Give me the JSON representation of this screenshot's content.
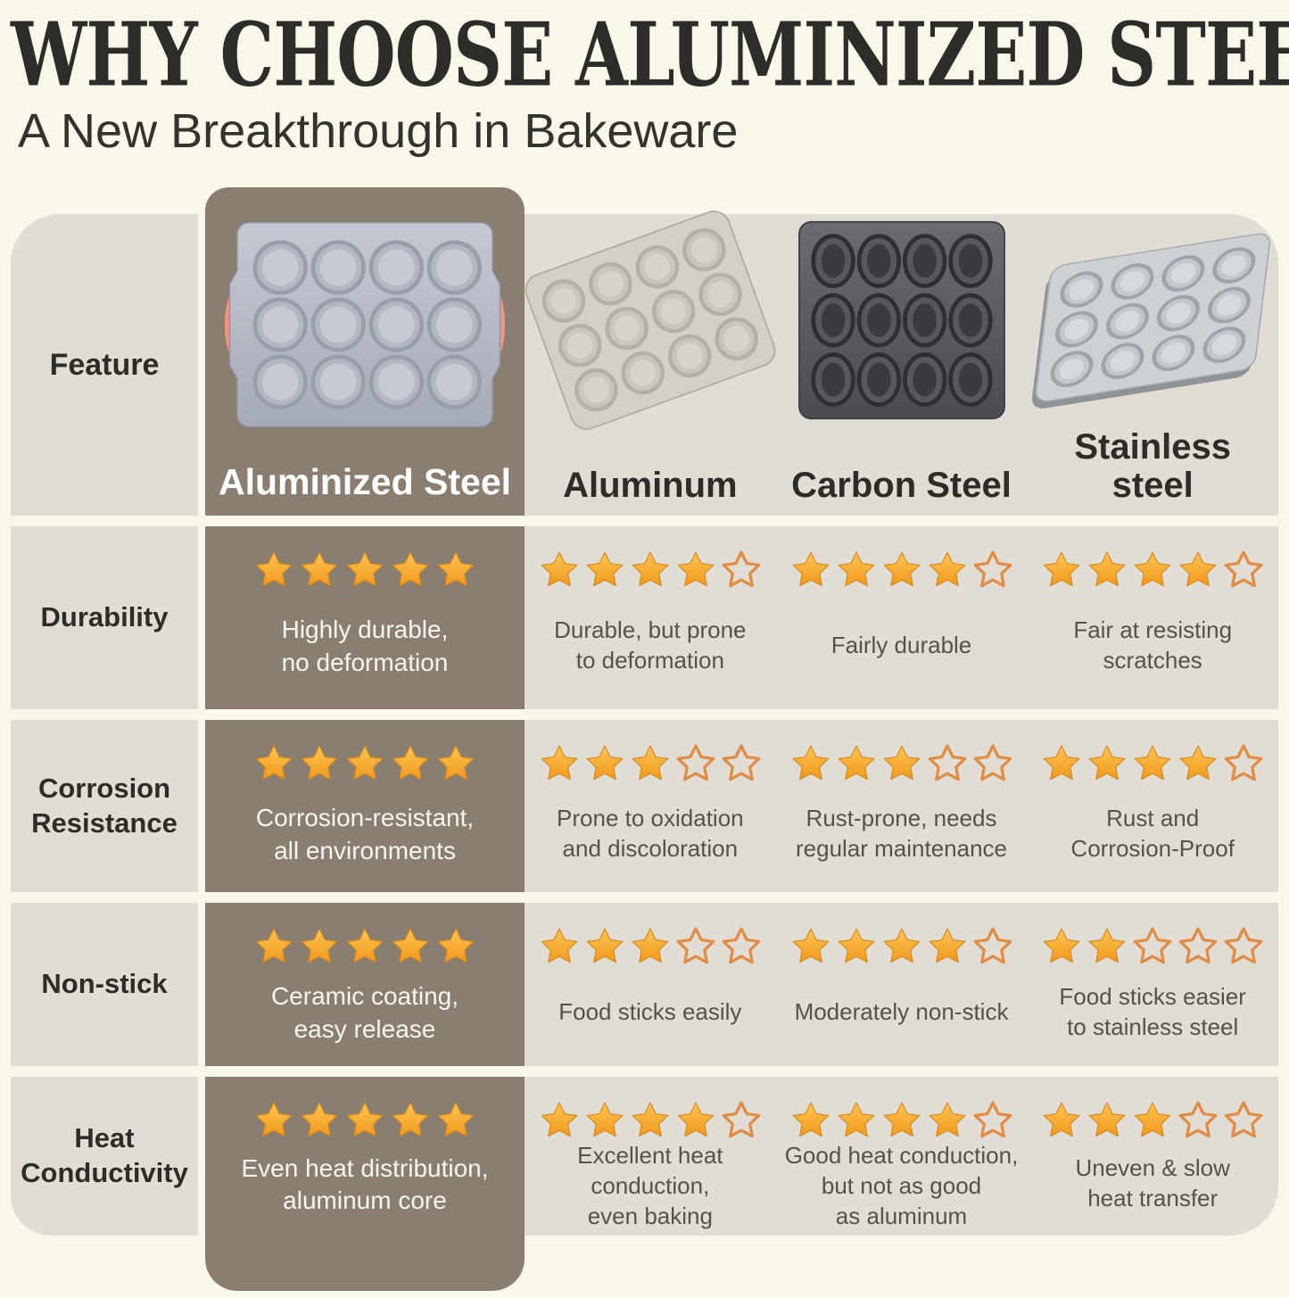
{
  "title": "WHY CHOOSE ALUMINIZED STEEL?",
  "subtitle": "A New Breakthrough in Bakeware",
  "table": {
    "feature_header": "Feature",
    "max_stars": 5,
    "columns": [
      "Aluminized Steel",
      "Aluminum",
      "Carbon Steel",
      "Stainless\nsteel"
    ],
    "rows": [
      {
        "feature": "Durability",
        "cells": [
          {
            "stars": 5,
            "text": "Highly durable,\nno deformation"
          },
          {
            "stars": 4,
            "text": "Durable, but prone\nto deformation"
          },
          {
            "stars": 4,
            "text": "Fairly durable"
          },
          {
            "stars": 4,
            "text": "Fair at resisting\nscratches"
          }
        ]
      },
      {
        "feature": "Corrosion\nResistance",
        "cells": [
          {
            "stars": 5,
            "text": "Corrosion-resistant,\nall environments"
          },
          {
            "stars": 3,
            "text": "Prone to oxidation\nand discoloration"
          },
          {
            "stars": 3,
            "text": "Rust-prone, needs\nregular maintenance"
          },
          {
            "stars": 4,
            "text": "Rust and\nCorrosion-Proof"
          }
        ]
      },
      {
        "feature": "Non-stick",
        "cells": [
          {
            "stars": 5,
            "text": "Ceramic coating,\neasy release"
          },
          {
            "stars": 3,
            "text": "Food sticks easily"
          },
          {
            "stars": 4,
            "text": "Moderately non-stick"
          },
          {
            "stars": 2,
            "text": "Food sticks easier\nto stainless steel"
          }
        ]
      },
      {
        "feature": "Heat\nConductivity",
        "cells": [
          {
            "stars": 5,
            "text": "Even heat distribution,\naluminum core"
          },
          {
            "stars": 4,
            "text": "Excellent heat\nconduction,\neven baking"
          },
          {
            "stars": 4,
            "text": "Good heat conduction,\nbut not as good\nas aluminum"
          },
          {
            "stars": 3,
            "text": "Uneven & slow\nheat transfer"
          }
        ]
      }
    ]
  },
  "colors": {
    "background": "#F9F7E9",
    "cell_gray": "#E1DDD4",
    "highlight_brown": "#8A7E71",
    "star_gold": "#F5A623",
    "star_outline": "#E08C44",
    "handle_coral": "#F5917C",
    "heading_ink": "#2E2C28"
  },
  "chart_data": {
    "type": "table",
    "title": "WHY CHOOSE ALUMINIZED STEEL?",
    "subtitle": "A New Breakthrough in Bakeware",
    "row_header": "Feature",
    "categories": [
      "Durability",
      "Corrosion Resistance",
      "Non-stick",
      "Heat Conductivity"
    ],
    "scale": "star rating out of 5",
    "series": [
      {
        "name": "Aluminized Steel",
        "values": [
          5,
          5,
          5,
          5
        ],
        "notes": [
          "Highly durable, no deformation",
          "Corrosion-resistant, all environments",
          "Ceramic coating, easy release",
          "Even heat distribution, aluminum core"
        ]
      },
      {
        "name": "Aluminum",
        "values": [
          4,
          3,
          3,
          4
        ],
        "notes": [
          "Durable, but prone to deformation",
          "Prone to oxidation and discoloration",
          "Food sticks easily",
          "Excellent heat conduction, even baking"
        ]
      },
      {
        "name": "Carbon Steel",
        "values": [
          4,
          3,
          4,
          4
        ],
        "notes": [
          "Fairly durable",
          "Rust-prone, needs regular maintenance",
          "Moderately non-stick",
          "Good heat conduction, but not as good as aluminum"
        ]
      },
      {
        "name": "Stainless steel",
        "values": [
          4,
          4,
          2,
          3
        ],
        "notes": [
          "Fair at resisting scratches",
          "Rust and Corrosion-Proof",
          "Food sticks easier to stainless steel",
          "Uneven & slow heat transfer"
        ]
      }
    ]
  }
}
